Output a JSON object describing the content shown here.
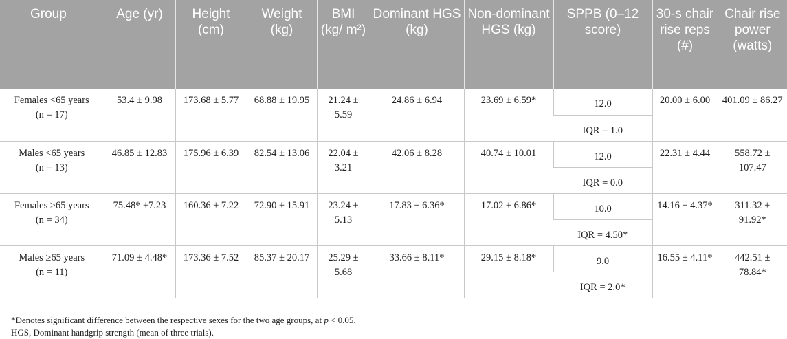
{
  "table": {
    "headers": [
      "Group",
      "Age (yr)",
      "Height (cm)",
      "Weight (kg)",
      "BMI (kg/ m²)",
      "Dominant HGS (kg)",
      "Non-dominant HGS (kg)",
      "SPPB (0–12 score)",
      "30-s chair rise reps (#)",
      "Chair rise power (watts)"
    ],
    "rows": [
      {
        "group_line1": "Females <65 years",
        "group_line2": "(n = 17)",
        "age": "53.4 ± 9.98",
        "height": "173.68 ± 5.77",
        "weight": "68.88 ± 19.95",
        "bmi": "21.24 ± 5.59",
        "dominant_hgs": "24.86 ± 6.94",
        "nondominant_hgs": "23.69 ± 6.59*",
        "sppb": "12.0",
        "sppb_iqr": "IQR = 1.0",
        "chair_reps": "20.00 ± 6.00",
        "chair_power": "401.09 ± 86.27"
      },
      {
        "group_line1": "Males <65 years",
        "group_line2": "(n = 13)",
        "age": "46.85 ± 12.83",
        "height": "175.96 ± 6.39",
        "weight": "82.54 ± 13.06",
        "bmi": "22.04 ± 3.21",
        "dominant_hgs": "42.06 ± 8.28",
        "nondominant_hgs": "40.74 ± 10.01",
        "sppb": "12.0",
        "sppb_iqr": "IQR = 0.0",
        "chair_reps": "22.31 ± 4.44",
        "chair_power": "558.72 ± 107.47"
      },
      {
        "group_line1": "Females ≥65 years",
        "group_line2": "(n = 34)",
        "age": "75.48* ±7.23",
        "height": "160.36 ± 7.22",
        "weight": "72.90 ± 15.91",
        "bmi": "23.24 ± 5.13",
        "dominant_hgs": "17.83 ± 6.36*",
        "nondominant_hgs": "17.02 ± 6.86*",
        "sppb": "10.0",
        "sppb_iqr": "IQR = 4.50*",
        "chair_reps": "14.16 ± 4.37*",
        "chair_power": "311.32 ± 91.92*"
      },
      {
        "group_line1": "Males ≥65 years",
        "group_line2": "(n = 11)",
        "age": "71.09 ± 4.48*",
        "height": "173.36 ± 7.52",
        "weight": "85.37 ± 20.17",
        "bmi": "25.29 ± 5.68",
        "dominant_hgs": "33.66 ± 8.11*",
        "nondominant_hgs": "29.15 ± 8.18*",
        "sppb": "9.0",
        "sppb_iqr": "IQR = 2.0*",
        "chair_reps": "16.55 ± 4.11*",
        "chair_power": "442.51 ± 78.84*"
      }
    ]
  },
  "footnotes": {
    "significance_pre": "*Denotes significant difference between the respective sexes for the two age groups, at ",
    "significance_p": "p",
    "significance_post": " < 0.05.",
    "hgs": "HGS, Dominant handgrip strength (mean of three trials)."
  },
  "colors": {
    "header_bg": "#a3a3a3",
    "header_text": "#ffffff",
    "rule": "#c8c8c8"
  }
}
